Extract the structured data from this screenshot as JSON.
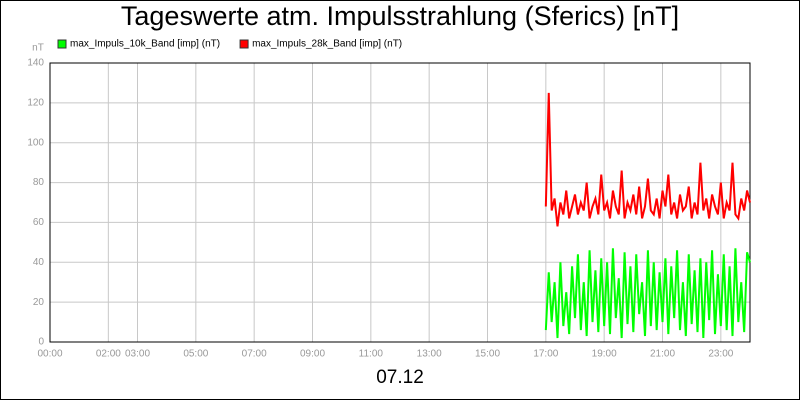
{
  "chart_data": {
    "type": "line",
    "title": "Tageswerte atm. Impulsstrahlung (Sferics) [nT]",
    "ylabel": "nT",
    "xlabel": "07.12",
    "xlim": [
      0,
      24
    ],
    "xticks": [
      {
        "value": 0,
        "label": "00:00"
      },
      {
        "value": 2,
        "label": "02:00"
      },
      {
        "value": 3,
        "label": "03:00"
      },
      {
        "value": 5,
        "label": "05:00"
      },
      {
        "value": 7,
        "label": "07:00"
      },
      {
        "value": 9,
        "label": "09:00"
      },
      {
        "value": 11,
        "label": "11:00"
      },
      {
        "value": 13,
        "label": "13:00"
      },
      {
        "value": 15,
        "label": "15:00"
      },
      {
        "value": 17,
        "label": "17:00"
      },
      {
        "value": 19,
        "label": "19:00"
      },
      {
        "value": 21,
        "label": "21:00"
      },
      {
        "value": 23,
        "label": "23:00"
      }
    ],
    "ylim": [
      0,
      140
    ],
    "yticks": [
      0,
      20,
      40,
      60,
      80,
      100,
      120,
      140
    ],
    "grid": true,
    "x": [
      17,
      17.1,
      17.2,
      17.3,
      17.4,
      17.5,
      17.6,
      17.7,
      17.8,
      17.9,
      18,
      18.1,
      18.2,
      18.3,
      18.4,
      18.5,
      18.6,
      18.7,
      18.8,
      18.9,
      19,
      19.1,
      19.2,
      19.3,
      19.4,
      19.5,
      19.6,
      19.7,
      19.8,
      19.9,
      20,
      20.1,
      20.2,
      20.3,
      20.4,
      20.5,
      20.6,
      20.7,
      20.8,
      20.9,
      21,
      21.1,
      21.2,
      21.3,
      21.4,
      21.5,
      21.6,
      21.7,
      21.8,
      21.9,
      22,
      22.1,
      22.2,
      22.3,
      22.4,
      22.5,
      22.6,
      22.7,
      22.8,
      22.9,
      23,
      23.1,
      23.2,
      23.3,
      23.4,
      23.5,
      23.6,
      23.7,
      23.8,
      23.9,
      24
    ],
    "series": [
      {
        "name": "max_Impuls_10k_Band [imp] (nT)",
        "color": "#00ff00",
        "values": [
          6,
          35,
          10,
          30,
          2,
          40,
          8,
          25,
          4,
          38,
          12,
          44,
          6,
          30,
          3,
          46,
          10,
          36,
          5,
          42,
          8,
          40,
          4,
          47,
          12,
          32,
          2,
          45,
          9,
          38,
          5,
          44,
          14,
          30,
          3,
          46,
          8,
          40,
          6,
          35,
          10,
          42,
          4,
          38,
          12,
          46,
          6,
          30,
          3,
          44,
          9,
          36,
          5,
          42,
          2,
          40,
          11,
          46,
          4,
          34,
          8,
          44,
          6,
          38,
          3,
          47,
          10,
          30,
          5,
          45,
          40
        ]
      },
      {
        "name": "max_Impuls_28k_Band [imp] (nT)",
        "color": "#ff0000",
        "values": [
          68,
          125,
          66,
          72,
          58,
          70,
          64,
          76,
          62,
          68,
          74,
          64,
          70,
          66,
          80,
          62,
          68,
          72,
          64,
          84,
          66,
          70,
          62,
          76,
          68,
          64,
          86,
          62,
          70,
          66,
          74,
          64,
          78,
          62,
          68,
          82,
          66,
          64,
          72,
          62,
          76,
          68,
          84,
          64,
          70,
          62,
          74,
          66,
          68,
          78,
          62,
          70,
          64,
          90,
          66,
          72,
          62,
          74,
          68,
          64,
          80,
          62,
          70,
          66,
          90,
          64,
          62,
          72,
          66,
          76,
          70
        ]
      }
    ]
  }
}
